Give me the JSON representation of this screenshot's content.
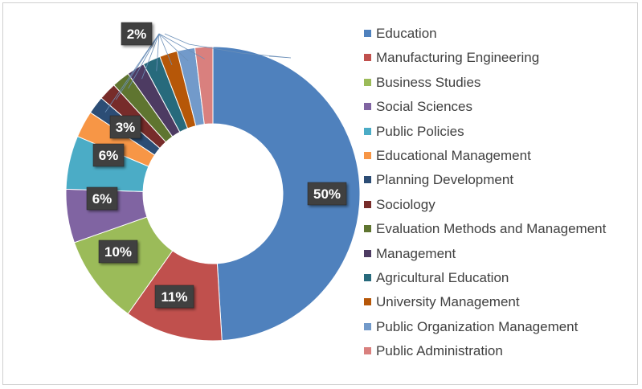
{
  "chart_data": {
    "type": "pie",
    "categories": [
      "Education",
      "Manufacturing Engineering",
      "Business Studies",
      "Social Sciences",
      "Public Policies",
      "Educational Management",
      "Planning Development",
      "Sociology",
      "Evaluation Methods and Management",
      "Management",
      "Agricultural Education",
      "University Management",
      "Public Organization Management",
      "Public Administration"
    ],
    "values": [
      50,
      11,
      10,
      6,
      6,
      3,
      2,
      2,
      2,
      2,
      2,
      2,
      2,
      2
    ],
    "data_labels": [
      "50%",
      "11%",
      "10%",
      "6%",
      "6%",
      "3%",
      "",
      "",
      "",
      "",
      "",
      "",
      "",
      "2%"
    ],
    "colors": [
      "#4f81bd",
      "#c0504d",
      "#9bbb59",
      "#8064a2",
      "#4bacc6",
      "#f79646",
      "#2c4d75",
      "#772c2a",
      "#5f7530",
      "#4d3b62",
      "#276a7c",
      "#b65708",
      "#729aca",
      "#d9807e"
    ],
    "hole": "donut",
    "legend_position": "right"
  }
}
